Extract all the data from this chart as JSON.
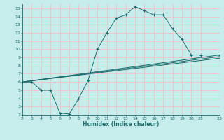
{
  "xlabel": "Humidex (Indice chaleur)",
  "bg_color": "#c6eceb",
  "grid_color": "#e8c8c8",
  "line_color": "#1a6b6b",
  "xlim": [
    2,
    23
  ],
  "ylim": [
    2,
    15.5
  ],
  "xticks": [
    2,
    3,
    4,
    5,
    6,
    7,
    8,
    9,
    10,
    11,
    12,
    13,
    14,
    15,
    16,
    17,
    18,
    19,
    20,
    21,
    23
  ],
  "yticks": [
    2,
    3,
    4,
    5,
    6,
    7,
    8,
    9,
    10,
    11,
    12,
    13,
    14,
    15
  ],
  "series": [
    {
      "x": [
        2,
        3,
        4,
        5,
        6,
        7,
        8,
        9,
        10,
        11,
        12,
        13,
        14,
        15,
        16,
        17,
        18,
        19,
        20,
        21,
        23
      ],
      "y": [
        6,
        6,
        5,
        5,
        2.2,
        2.1,
        4.0,
        6.2,
        10.0,
        12.0,
        13.8,
        14.2,
        15.2,
        14.7,
        14.2,
        14.2,
        12.5,
        11.2,
        9.3,
        9.3,
        9.3
      ],
      "marker": true
    },
    {
      "x": [
        2,
        23
      ],
      "y": [
        6.0,
        9.3
      ],
      "marker": false
    },
    {
      "x": [
        2,
        23
      ],
      "y": [
        6.0,
        9.1
      ],
      "marker": false
    },
    {
      "x": [
        2,
        23
      ],
      "y": [
        6.0,
        8.9
      ],
      "marker": false
    }
  ]
}
